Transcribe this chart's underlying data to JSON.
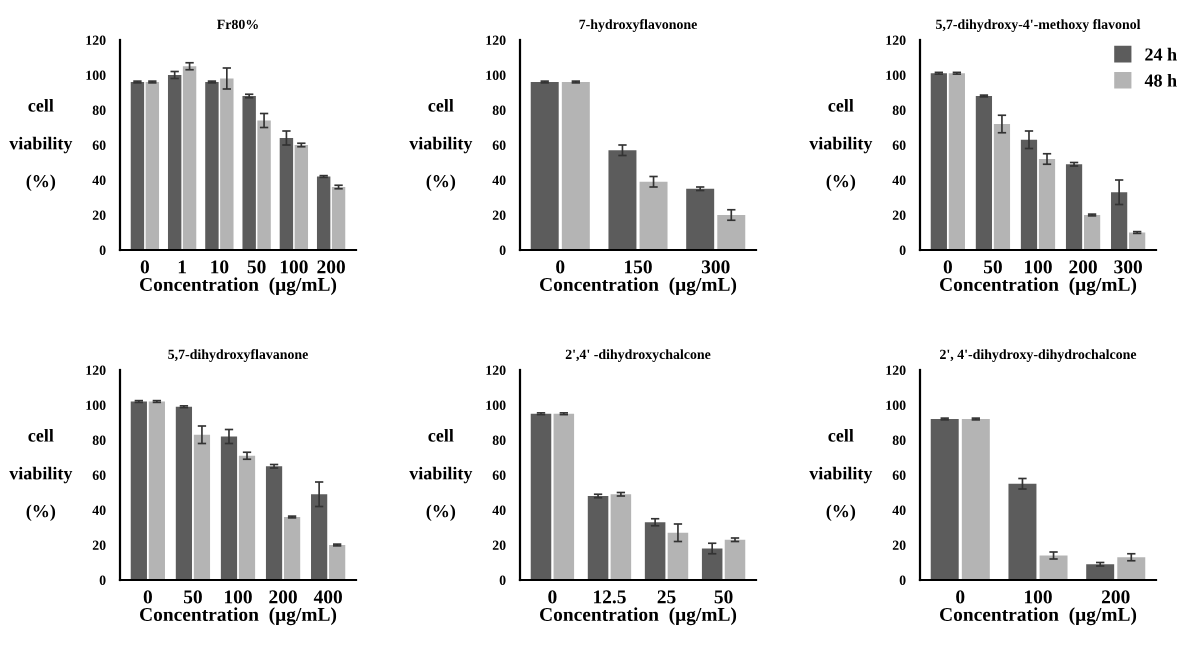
{
  "chart_data": [
    {
      "type": "bar",
      "title": "Fr80%",
      "xlabel": "Concentration  (μg/mL)",
      "ylabel": "cell\n\nviability\n\n(%)",
      "categories": [
        "0",
        "1",
        "10",
        "50",
        "100",
        "200"
      ],
      "ylim": [
        0,
        120
      ],
      "yticks": [
        0,
        20,
        40,
        60,
        80,
        100,
        120
      ],
      "grid": false,
      "legend": false,
      "series": [
        {
          "color": "#5c5c5c",
          "values": [
            96,
            100,
            96,
            88,
            64,
            42
          ],
          "errors": [
            0.5,
            2,
            0.5,
            1,
            4,
            0.5
          ]
        },
        {
          "color": "#b4b4b4",
          "values": [
            96,
            105,
            98,
            74,
            60,
            36
          ],
          "errors": [
            0.5,
            2,
            6,
            4,
            1,
            1
          ]
        }
      ]
    },
    {
      "type": "bar",
      "title": "7-hydroxyflavonone",
      "xlabel": "Concentration  (μg/mL)",
      "ylabel": "cell\n\nviability\n\n(%)",
      "categories": [
        "0",
        "150",
        "300"
      ],
      "ylim": [
        0,
        120
      ],
      "yticks": [
        0,
        20,
        40,
        60,
        80,
        100,
        120
      ],
      "grid": false,
      "legend": false,
      "series": [
        {
          "color": "#5c5c5c",
          "values": [
            96,
            57,
            35
          ],
          "errors": [
            0.5,
            3,
            1
          ]
        },
        {
          "color": "#b4b4b4",
          "values": [
            96,
            39,
            20
          ],
          "errors": [
            0.5,
            3,
            3
          ]
        }
      ]
    },
    {
      "type": "bar",
      "title": "5,7-dihydroxy-4'-methoxy flavonol",
      "xlabel": "Concentration  (μg/mL)",
      "ylabel": "cell\n\nviability\n\n(%)",
      "categories": [
        "0",
        "50",
        "100",
        "200",
        "300"
      ],
      "ylim": [
        0,
        120
      ],
      "yticks": [
        0,
        20,
        40,
        60,
        80,
        100,
        120
      ],
      "grid": false,
      "legend": "top right",
      "series": [
        {
          "name": "24 h",
          "color": "#5c5c5c",
          "values": [
            101,
            88,
            63,
            49,
            33
          ],
          "errors": [
            0.5,
            0.5,
            5,
            1,
            7
          ]
        },
        {
          "name": "48 h",
          "color": "#b4b4b4",
          "values": [
            101,
            72,
            52,
            20,
            10
          ],
          "errors": [
            0.5,
            5,
            3,
            0.5,
            0.5
          ]
        }
      ]
    },
    {
      "type": "bar",
      "title": "5,7-dihydroxyflavanone",
      "xlabel": "Concentration  (μg/mL)",
      "ylabel": "cell\n\nviability\n\n(%)",
      "categories": [
        "0",
        "50",
        "100",
        "200",
        "400"
      ],
      "ylim": [
        0,
        120
      ],
      "yticks": [
        0,
        20,
        40,
        60,
        80,
        100,
        120
      ],
      "grid": false,
      "legend": false,
      "series": [
        {
          "color": "#5c5c5c",
          "values": [
            102,
            99,
            82,
            65,
            49
          ],
          "errors": [
            0.5,
            0.5,
            4,
            1,
            7
          ]
        },
        {
          "color": "#b4b4b4",
          "values": [
            102,
            83,
            71,
            36,
            20
          ],
          "errors": [
            0.5,
            5,
            2,
            0.5,
            0.5
          ]
        }
      ]
    },
    {
      "type": "bar",
      "title": "2',4' -dihydroxychalcone",
      "xlabel": "Concentration  (μg/mL)",
      "ylabel": "cell\n\nviability\n\n(%)",
      "categories": [
        "0",
        "12.5",
        "25",
        "50"
      ],
      "ylim": [
        0,
        120
      ],
      "yticks": [
        0,
        20,
        40,
        60,
        80,
        100,
        120
      ],
      "grid": false,
      "legend": false,
      "series": [
        {
          "color": "#5c5c5c",
          "values": [
            95,
            48,
            33,
            18
          ],
          "errors": [
            0.5,
            1,
            2,
            3
          ]
        },
        {
          "color": "#b4b4b4",
          "values": [
            95,
            49,
            27,
            23
          ],
          "errors": [
            0.5,
            1,
            5,
            1
          ]
        }
      ]
    },
    {
      "type": "bar",
      "title": "2', 4'-dihydroxy-dihydrochalcone",
      "xlabel": "Concentration  (μg/mL)",
      "ylabel": "cell\n\nviability\n\n(%)",
      "categories": [
        "0",
        "100",
        "200"
      ],
      "ylim": [
        0,
        120
      ],
      "yticks": [
        0,
        20,
        40,
        60,
        80,
        100,
        120
      ],
      "grid": false,
      "legend": false,
      "series": [
        {
          "color": "#5c5c5c",
          "values": [
            92,
            55,
            9
          ],
          "errors": [
            0.5,
            3,
            1
          ]
        },
        {
          "color": "#b4b4b4",
          "values": [
            92,
            14,
            13
          ],
          "errors": [
            0.5,
            2,
            2
          ]
        }
      ]
    }
  ]
}
